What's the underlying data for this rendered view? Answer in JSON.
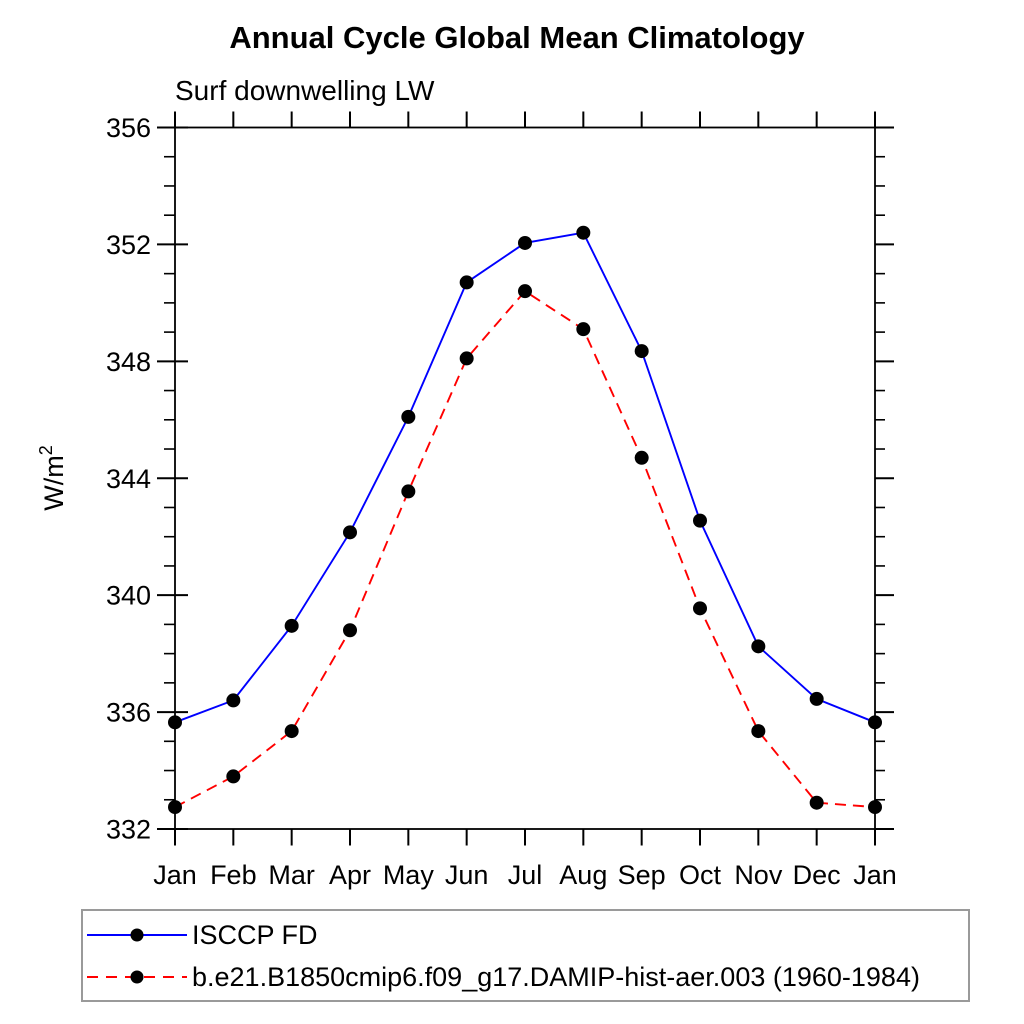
{
  "title": "Annual Cycle Global Mean Climatology",
  "subtitle": "Surf downwelling LW",
  "chart_data": {
    "type": "line",
    "x_categories": [
      "Jan",
      "Feb",
      "Mar",
      "Apr",
      "May",
      "Jun",
      "Jul",
      "Aug",
      "Sep",
      "Oct",
      "Nov",
      "Dec",
      "Jan"
    ],
    "ylabel": "W/m²",
    "ylabel_base": "W/m",
    "ylabel_sup": "2",
    "ylim": [
      332,
      356
    ],
    "ytick_major": [
      332,
      336,
      340,
      344,
      348,
      352,
      356
    ],
    "ytick_minor_step": 1,
    "grid": false,
    "legend_position": "bottom-left",
    "axis_color": "#000000",
    "marker_color": "#000000",
    "series": [
      {
        "name": "ISCCP FD",
        "color": "#0000ff",
        "line_style": "solid",
        "marker": "circle",
        "values": [
          335.65,
          336.4,
          338.95,
          342.15,
          346.1,
          350.7,
          352.05,
          352.4,
          348.35,
          342.55,
          338.25,
          336.45,
          335.65
        ]
      },
      {
        "name": "b.e21.B1850cmip6.f09_g17.DAMIP-hist-aer.003 (1960-1984)",
        "color": "#ff0000",
        "line_style": "dashed",
        "marker": "circle",
        "values": [
          332.75,
          333.8,
          335.35,
          338.8,
          343.55,
          348.1,
          350.4,
          349.1,
          344.7,
          339.55,
          335.35,
          332.9,
          332.75
        ]
      }
    ]
  }
}
